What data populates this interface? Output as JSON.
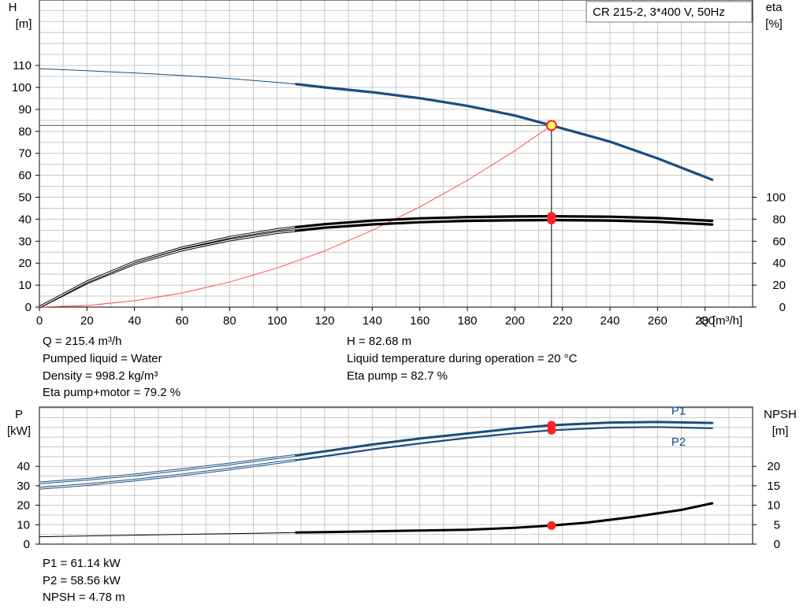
{
  "title": "CR 215-2, 3*400 V, 50Hz",
  "colors": {
    "head": "#1a4d80",
    "power": "#1a4d80",
    "efficiency": "#000000",
    "npsh": "#000000",
    "system_curve": "#ff4d4d",
    "duty_point": "#ff2020",
    "duty_point_head_fill": "#ffff66",
    "grid": "#c8c8c8"
  },
  "chart_data": [
    {
      "type": "line",
      "name": "head-efficiency",
      "xlabel": "Q [m³/h]",
      "ylabel": "H\n[m]",
      "y2label": "eta\n[%]",
      "xlim": [
        0,
        300
      ],
      "ylim": [
        0,
        130
      ],
      "y2lim": [
        0,
        100
      ],
      "x_ticks": [
        0,
        20,
        40,
        60,
        80,
        100,
        120,
        140,
        160,
        180,
        200,
        220,
        240,
        260,
        280
      ],
      "y_ticks": [
        0,
        10,
        20,
        30,
        40,
        50,
        60,
        70,
        80,
        90,
        100,
        110
      ],
      "y2_ticks": [
        0,
        20,
        40,
        60,
        80,
        100
      ],
      "grid": true,
      "series": [
        {
          "key": "head",
          "axis": "left",
          "thin_until": 108,
          "x": [
            0,
            20,
            40,
            60,
            80,
            100,
            108,
            120,
            140,
            160,
            180,
            200,
            215.4,
            240,
            260,
            283
          ],
          "y": [
            108.5,
            107.6,
            106.6,
            105.4,
            104,
            102.3,
            101.5,
            100,
            97.8,
            95.1,
            91.6,
            87.2,
            82.7,
            75.3,
            67.7,
            58
          ]
        },
        {
          "key": "eta-pump",
          "axis": "right",
          "thin_until": 108,
          "x": [
            0,
            20,
            40,
            60,
            80,
            100,
            108,
            120,
            140,
            160,
            180,
            200,
            215.4,
            240,
            260,
            283
          ],
          "y": [
            0,
            23,
            41,
            54,
            63.5,
            70.6,
            72.8,
            75.5,
            78.7,
            80.8,
            81.9,
            82.5,
            82.7,
            82.3,
            81.1,
            78.5
          ]
        },
        {
          "key": "eta-pump-motor",
          "axis": "right",
          "thin_until": 108,
          "x": [
            0,
            20,
            40,
            60,
            80,
            100,
            108,
            120,
            140,
            160,
            180,
            200,
            215.4,
            240,
            260,
            283
          ],
          "y": [
            0,
            22,
            39.5,
            52,
            61,
            67.8,
            69.6,
            72.3,
            75.3,
            77.3,
            78.5,
            79,
            79.2,
            78.8,
            77.6,
            75.2
          ]
        },
        {
          "key": "system-curve",
          "axis": "left",
          "x": [
            0,
            20,
            40,
            60,
            80,
            100,
            120,
            140,
            160,
            180,
            200,
            215.4
          ],
          "y": [
            0,
            0.7,
            2.9,
            6.4,
            11.4,
            17.8,
            25.6,
            34.9,
            45.6,
            57.7,
            71.2,
            82.7
          ]
        }
      ],
      "duty_point": {
        "q": 215.4,
        "h": 82.68,
        "eta_pump": 82.7,
        "eta_total": 79.2
      }
    },
    {
      "type": "line",
      "name": "power-npsh",
      "xlim": [
        0,
        300
      ],
      "ylabel": "P\n[kW]",
      "y2label": "NPSH\n[m]",
      "y_ticks": [
        0,
        10,
        20,
        30,
        40
      ],
      "y2_ticks": [
        0,
        5,
        10,
        15,
        20
      ],
      "grid": true,
      "series": [
        {
          "key": "P1",
          "name": "P1",
          "axis": "left",
          "thin_until": 108,
          "x": [
            0,
            20,
            40,
            60,
            80,
            100,
            108,
            120,
            140,
            160,
            180,
            200,
            215.4,
            240,
            260,
            283
          ],
          "y": [
            31.5,
            33.3,
            35.6,
            38.3,
            41.2,
            44.4,
            45.6,
            47.7,
            51.2,
            54.3,
            56.9,
            59.5,
            61.14,
            62.5,
            62.8,
            62.3
          ]
        },
        {
          "key": "P2",
          "name": "P2",
          "axis": "left",
          "thin_until": 108,
          "x": [
            0,
            20,
            40,
            60,
            80,
            100,
            108,
            120,
            140,
            160,
            180,
            200,
            215.4,
            240,
            260,
            283
          ],
          "y": [
            28.7,
            30.6,
            32.9,
            35.6,
            38.6,
            41.9,
            43.2,
            45.2,
            48.7,
            51.8,
            54.6,
            57,
            58.56,
            59.9,
            60.2,
            59.6
          ]
        },
        {
          "key": "NPSH",
          "axis": "right",
          "thin_until": 108,
          "x": [
            0,
            20,
            40,
            60,
            80,
            100,
            108,
            120,
            140,
            160,
            180,
            200,
            215.4,
            230,
            250,
            270,
            283
          ],
          "y": [
            1.9,
            2.1,
            2.3,
            2.5,
            2.7,
            2.9,
            3.0,
            3.1,
            3.3,
            3.5,
            3.7,
            4.2,
            4.78,
            5.5,
            7,
            8.8,
            10.5
          ]
        }
      ]
    }
  ],
  "info_top": {
    "q": "Q = 215.4 m³/h",
    "liquid": "Pumped liquid = Water",
    "density": "Density = 998.2 kg/m³",
    "eta_total": "Eta pump+motor = 79.2 %",
    "h": "H = 82.68 m",
    "temperature": "Liquid temperature during operation = 20 °C",
    "eta_pump": "Eta pump = 82.7 %"
  },
  "info_bottom": {
    "p1": "P1 = 61.14 kW",
    "p2": "P2 = 58.56 kW",
    "npsh": "NPSH = 4.78 m"
  }
}
